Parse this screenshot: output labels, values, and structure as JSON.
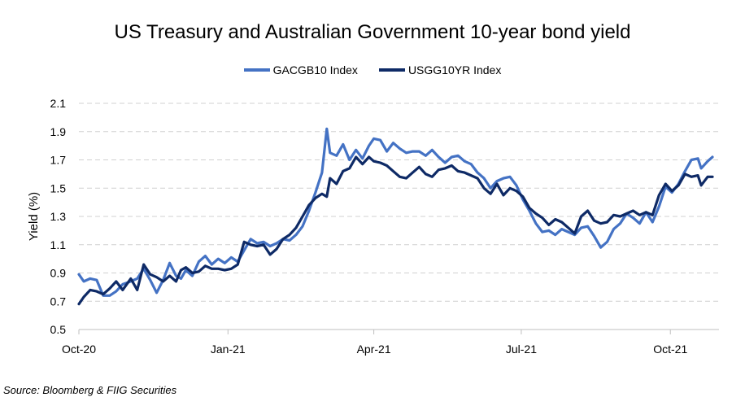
{
  "chart_data": {
    "type": "line",
    "title": "US Treasury and Australian Government 10-year bond yield",
    "ylabel": "Yield (%)",
    "xlabel": "",
    "ylim": [
      0.5,
      2.1
    ],
    "yticks": [
      0.5,
      0.7,
      0.9,
      1.1,
      1.3,
      1.5,
      1.7,
      1.9,
      2.1
    ],
    "xlim": [
      "2020-10-01",
      "2021-10-31"
    ],
    "xticks": [
      {
        "date": "2020-10-01",
        "label": "Oct-20"
      },
      {
        "date": "2021-01-01",
        "label": "Jan-21"
      },
      {
        "date": "2021-04-01",
        "label": "Apr-21"
      },
      {
        "date": "2021-07-01",
        "label": "Jul-21"
      },
      {
        "date": "2021-10-01",
        "label": "Oct-21"
      }
    ],
    "grid": "horizontal dashed",
    "legend_position": "top",
    "series": [
      {
        "name": "GACGB10 Index",
        "color": "#4472C4",
        "points": [
          [
            "2020-10-01",
            0.89
          ],
          [
            "2020-10-04",
            0.84
          ],
          [
            "2020-10-08",
            0.86
          ],
          [
            "2020-10-12",
            0.85
          ],
          [
            "2020-10-16",
            0.74
          ],
          [
            "2020-10-20",
            0.74
          ],
          [
            "2020-10-24",
            0.77
          ],
          [
            "2020-10-28",
            0.82
          ],
          [
            "2020-11-02",
            0.84
          ],
          [
            "2020-11-06",
            0.86
          ],
          [
            "2020-11-10",
            0.93
          ],
          [
            "2020-11-14",
            0.85
          ],
          [
            "2020-11-18",
            0.76
          ],
          [
            "2020-11-22",
            0.85
          ],
          [
            "2020-11-26",
            0.97
          ],
          [
            "2020-11-30",
            0.88
          ],
          [
            "2020-12-03",
            0.86
          ],
          [
            "2020-12-06",
            0.92
          ],
          [
            "2020-12-10",
            0.88
          ],
          [
            "2020-12-14",
            0.98
          ],
          [
            "2020-12-18",
            1.02
          ],
          [
            "2020-12-22",
            0.96
          ],
          [
            "2020-12-26",
            1.0
          ],
          [
            "2020-12-30",
            0.97
          ],
          [
            "2021-01-03",
            1.01
          ],
          [
            "2021-01-07",
            0.98
          ],
          [
            "2021-01-11",
            1.06
          ],
          [
            "2021-01-15",
            1.14
          ],
          [
            "2021-01-19",
            1.11
          ],
          [
            "2021-01-23",
            1.12
          ],
          [
            "2021-01-27",
            1.09
          ],
          [
            "2021-01-31",
            1.11
          ],
          [
            "2021-02-04",
            1.14
          ],
          [
            "2021-02-08",
            1.13
          ],
          [
            "2021-02-12",
            1.17
          ],
          [
            "2021-02-16",
            1.23
          ],
          [
            "2021-02-20",
            1.34
          ],
          [
            "2021-02-24",
            1.47
          ],
          [
            "2021-02-28",
            1.61
          ],
          [
            "2021-03-03",
            1.92
          ],
          [
            "2021-03-05",
            1.75
          ],
          [
            "2021-03-09",
            1.73
          ],
          [
            "2021-03-13",
            1.81
          ],
          [
            "2021-03-17",
            1.7
          ],
          [
            "2021-03-21",
            1.77
          ],
          [
            "2021-03-25",
            1.71
          ],
          [
            "2021-03-29",
            1.8
          ],
          [
            "2021-04-01",
            1.85
          ],
          [
            "2021-04-05",
            1.84
          ],
          [
            "2021-04-09",
            1.76
          ],
          [
            "2021-04-13",
            1.82
          ],
          [
            "2021-04-17",
            1.78
          ],
          [
            "2021-04-21",
            1.75
          ],
          [
            "2021-04-25",
            1.76
          ],
          [
            "2021-04-29",
            1.76
          ],
          [
            "2021-05-03",
            1.73
          ],
          [
            "2021-05-07",
            1.77
          ],
          [
            "2021-05-11",
            1.72
          ],
          [
            "2021-05-15",
            1.68
          ],
          [
            "2021-05-19",
            1.72
          ],
          [
            "2021-05-23",
            1.73
          ],
          [
            "2021-05-27",
            1.69
          ],
          [
            "2021-05-31",
            1.67
          ],
          [
            "2021-06-04",
            1.61
          ],
          [
            "2021-06-08",
            1.57
          ],
          [
            "2021-06-12",
            1.5
          ],
          [
            "2021-06-16",
            1.55
          ],
          [
            "2021-06-20",
            1.57
          ],
          [
            "2021-06-24",
            1.58
          ],
          [
            "2021-06-28",
            1.52
          ],
          [
            "2021-07-02",
            1.42
          ],
          [
            "2021-07-06",
            1.34
          ],
          [
            "2021-07-10",
            1.25
          ],
          [
            "2021-07-14",
            1.19
          ],
          [
            "2021-07-18",
            1.2
          ],
          [
            "2021-07-22",
            1.17
          ],
          [
            "2021-07-26",
            1.21
          ],
          [
            "2021-07-30",
            1.19
          ],
          [
            "2021-08-03",
            1.17
          ],
          [
            "2021-08-07",
            1.22
          ],
          [
            "2021-08-11",
            1.23
          ],
          [
            "2021-08-15",
            1.16
          ],
          [
            "2021-08-19",
            1.08
          ],
          [
            "2021-08-23",
            1.12
          ],
          [
            "2021-08-27",
            1.21
          ],
          [
            "2021-08-31",
            1.25
          ],
          [
            "2021-09-04",
            1.32
          ],
          [
            "2021-09-08",
            1.29
          ],
          [
            "2021-09-12",
            1.25
          ],
          [
            "2021-09-16",
            1.33
          ],
          [
            "2021-09-20",
            1.26
          ],
          [
            "2021-09-24",
            1.37
          ],
          [
            "2021-09-28",
            1.51
          ],
          [
            "2021-10-02",
            1.47
          ],
          [
            "2021-10-06",
            1.53
          ],
          [
            "2021-10-10",
            1.62
          ],
          [
            "2021-10-14",
            1.7
          ],
          [
            "2021-10-18",
            1.71
          ],
          [
            "2021-10-20",
            1.64
          ],
          [
            "2021-10-24",
            1.69
          ],
          [
            "2021-10-27",
            1.72
          ]
        ]
      },
      {
        "name": "USGG10YR Index",
        "color": "#0E2A66",
        "points": [
          [
            "2020-10-01",
            0.68
          ],
          [
            "2020-10-04",
            0.73
          ],
          [
            "2020-10-08",
            0.78
          ],
          [
            "2020-10-12",
            0.77
          ],
          [
            "2020-10-16",
            0.75
          ],
          [
            "2020-10-20",
            0.79
          ],
          [
            "2020-10-24",
            0.84
          ],
          [
            "2020-10-28",
            0.78
          ],
          [
            "2020-11-02",
            0.86
          ],
          [
            "2020-11-06",
            0.78
          ],
          [
            "2020-11-10",
            0.96
          ],
          [
            "2020-11-14",
            0.89
          ],
          [
            "2020-11-18",
            0.87
          ],
          [
            "2020-11-22",
            0.84
          ],
          [
            "2020-11-26",
            0.88
          ],
          [
            "2020-11-30",
            0.84
          ],
          [
            "2020-12-03",
            0.92
          ],
          [
            "2020-12-06",
            0.94
          ],
          [
            "2020-12-10",
            0.9
          ],
          [
            "2020-12-14",
            0.91
          ],
          [
            "2020-12-18",
            0.95
          ],
          [
            "2020-12-22",
            0.93
          ],
          [
            "2020-12-26",
            0.93
          ],
          [
            "2020-12-30",
            0.92
          ],
          [
            "2021-01-03",
            0.93
          ],
          [
            "2021-01-07",
            0.96
          ],
          [
            "2021-01-11",
            1.12
          ],
          [
            "2021-01-15",
            1.1
          ],
          [
            "2021-01-19",
            1.09
          ],
          [
            "2021-01-23",
            1.1
          ],
          [
            "2021-01-27",
            1.03
          ],
          [
            "2021-01-31",
            1.07
          ],
          [
            "2021-02-04",
            1.14
          ],
          [
            "2021-02-08",
            1.17
          ],
          [
            "2021-02-12",
            1.22
          ],
          [
            "2021-02-16",
            1.3
          ],
          [
            "2021-02-20",
            1.38
          ],
          [
            "2021-02-24",
            1.43
          ],
          [
            "2021-02-28",
            1.46
          ],
          [
            "2021-03-03",
            1.44
          ],
          [
            "2021-03-05",
            1.57
          ],
          [
            "2021-03-09",
            1.53
          ],
          [
            "2021-03-13",
            1.62
          ],
          [
            "2021-03-17",
            1.64
          ],
          [
            "2021-03-21",
            1.72
          ],
          [
            "2021-03-25",
            1.67
          ],
          [
            "2021-03-29",
            1.72
          ],
          [
            "2021-04-01",
            1.69
          ],
          [
            "2021-04-05",
            1.68
          ],
          [
            "2021-04-09",
            1.66
          ],
          [
            "2021-04-13",
            1.62
          ],
          [
            "2021-04-17",
            1.58
          ],
          [
            "2021-04-21",
            1.57
          ],
          [
            "2021-04-25",
            1.61
          ],
          [
            "2021-04-29",
            1.65
          ],
          [
            "2021-05-03",
            1.6
          ],
          [
            "2021-05-07",
            1.58
          ],
          [
            "2021-05-11",
            1.63
          ],
          [
            "2021-05-15",
            1.64
          ],
          [
            "2021-05-19",
            1.66
          ],
          [
            "2021-05-23",
            1.62
          ],
          [
            "2021-05-27",
            1.61
          ],
          [
            "2021-05-31",
            1.59
          ],
          [
            "2021-06-04",
            1.57
          ],
          [
            "2021-06-08",
            1.5
          ],
          [
            "2021-06-12",
            1.46
          ],
          [
            "2021-06-16",
            1.53
          ],
          [
            "2021-06-20",
            1.45
          ],
          [
            "2021-06-24",
            1.5
          ],
          [
            "2021-06-28",
            1.48
          ],
          [
            "2021-07-02",
            1.44
          ],
          [
            "2021-07-06",
            1.36
          ],
          [
            "2021-07-10",
            1.32
          ],
          [
            "2021-07-14",
            1.29
          ],
          [
            "2021-07-18",
            1.24
          ],
          [
            "2021-07-22",
            1.28
          ],
          [
            "2021-07-26",
            1.26
          ],
          [
            "2021-07-30",
            1.22
          ],
          [
            "2021-08-03",
            1.18
          ],
          [
            "2021-08-07",
            1.3
          ],
          [
            "2021-08-11",
            1.34
          ],
          [
            "2021-08-15",
            1.27
          ],
          [
            "2021-08-19",
            1.25
          ],
          [
            "2021-08-23",
            1.26
          ],
          [
            "2021-08-27",
            1.31
          ],
          [
            "2021-08-31",
            1.3
          ],
          [
            "2021-09-04",
            1.32
          ],
          [
            "2021-09-08",
            1.34
          ],
          [
            "2021-09-12",
            1.31
          ],
          [
            "2021-09-16",
            1.33
          ],
          [
            "2021-09-20",
            1.31
          ],
          [
            "2021-09-24",
            1.45
          ],
          [
            "2021-09-28",
            1.53
          ],
          [
            "2021-10-02",
            1.48
          ],
          [
            "2021-10-06",
            1.52
          ],
          [
            "2021-10-10",
            1.6
          ],
          [
            "2021-10-14",
            1.58
          ],
          [
            "2021-10-18",
            1.59
          ],
          [
            "2021-10-20",
            1.52
          ],
          [
            "2021-10-24",
            1.58
          ],
          [
            "2021-10-27",
            1.58
          ]
        ]
      }
    ]
  },
  "source": "Source: Bloomberg & FIIG Securities"
}
